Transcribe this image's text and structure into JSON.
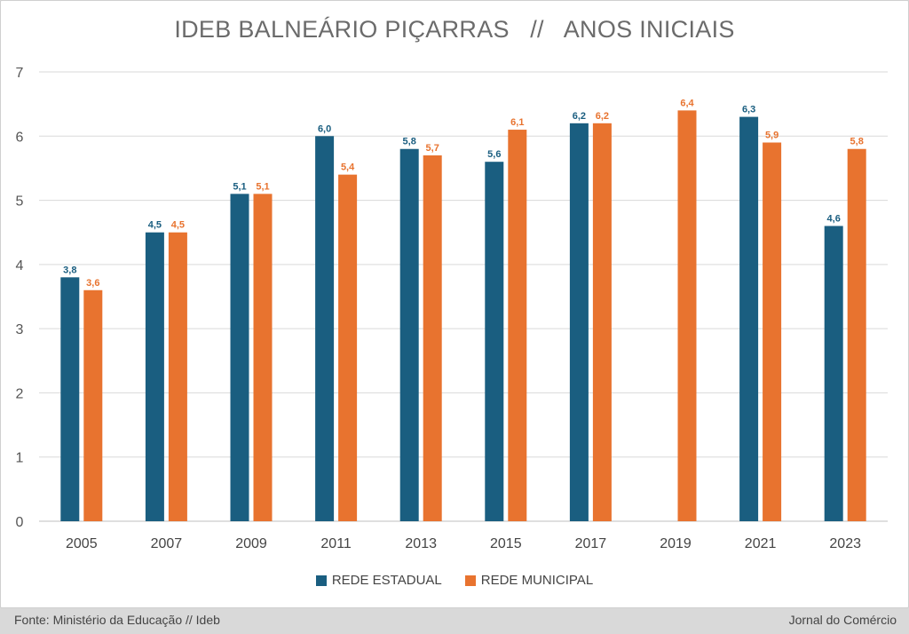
{
  "title": "IDEB BALNEÁRIO PIÇARRAS   //   ANOS INICIAIS",
  "chart_data": {
    "type": "bar",
    "title": "IDEB BALNEÁRIO PIÇARRAS   //   ANOS INICIAIS",
    "xlabel": "",
    "ylabel": "",
    "ylim": [
      0,
      7
    ],
    "yticks": [
      0,
      1,
      2,
      3,
      4,
      5,
      6,
      7
    ],
    "grid": true,
    "legend_position": "bottom",
    "categories": [
      "2005",
      "2007",
      "2009",
      "2011",
      "2013",
      "2015",
      "2017",
      "2019",
      "2021",
      "2023"
    ],
    "series": [
      {
        "name": "REDE ESTADUAL",
        "color": "#1a5e80",
        "values": [
          3.8,
          4.5,
          5.1,
          6.0,
          5.8,
          5.6,
          6.2,
          null,
          6.3,
          4.6
        ],
        "labels": [
          "3,8",
          "4,5",
          "5,1",
          "6,0",
          "5,8",
          "5,6",
          "6,2",
          "",
          "6,3",
          "4,6"
        ]
      },
      {
        "name": "REDE MUNICIPAL",
        "color": "#e8732f",
        "values": [
          3.6,
          4.5,
          5.1,
          5.4,
          5.7,
          6.1,
          6.2,
          6.4,
          5.9,
          5.8
        ],
        "labels": [
          "3,6",
          "4,5",
          "5,1",
          "5,4",
          "5,7",
          "6,1",
          "6,2",
          "6,4",
          "5,9",
          "5,8"
        ]
      }
    ]
  },
  "footer": {
    "source": "Fonte: Ministério da Educação // Ideb",
    "credit": "Jornal do Comércio"
  }
}
